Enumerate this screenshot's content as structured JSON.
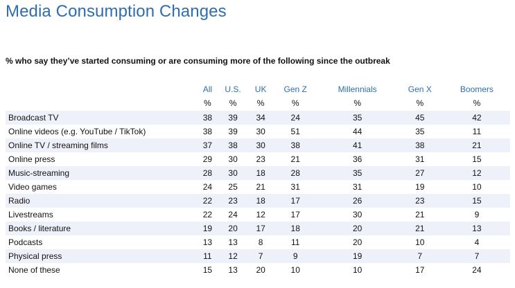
{
  "title": "Media Consumption Changes",
  "subtitle": "% who say they’ve started consuming or are consuming more of the following since the outbreak",
  "columns": [
    "All",
    "U.S.",
    "UK",
    "Gen Z",
    "Millennials",
    "Gen X",
    "Boomers"
  ],
  "unit": "%",
  "rows": [
    {
      "label": "Broadcast TV",
      "values": [
        "38",
        "39",
        "34",
        "24",
        "35",
        "45",
        "42"
      ]
    },
    {
      "label": "Online videos (e.g. YouTube / TikTok)",
      "values": [
        "38",
        "39",
        "30",
        "51",
        "44",
        "35",
        "11"
      ]
    },
    {
      "label": "Online TV / streaming films",
      "values": [
        "37",
        "38",
        "30",
        "38",
        "41",
        "38",
        "21"
      ]
    },
    {
      "label": "Online press",
      "values": [
        "29",
        "30",
        "23",
        "21",
        "36",
        "31",
        "15"
      ]
    },
    {
      "label": "Music-streaming",
      "values": [
        "28",
        "30",
        "18",
        "28",
        "35",
        "27",
        "12"
      ]
    },
    {
      "label": "Video games",
      "values": [
        "24",
        "25",
        "21",
        "31",
        "31",
        "19",
        "10"
      ]
    },
    {
      "label": "Radio",
      "values": [
        "22",
        "23",
        "18",
        "17",
        "26",
        "23",
        "15"
      ]
    },
    {
      "label": "Livestreams",
      "values": [
        "22",
        "24",
        "12",
        "17",
        "30",
        "21",
        "9"
      ]
    },
    {
      "label": "Books / literature",
      "values": [
        "19",
        "20",
        "17",
        "18",
        "20",
        "21",
        "13"
      ]
    },
    {
      "label": "Podcasts",
      "values": [
        "13",
        "13",
        "8",
        "11",
        "20",
        "10",
        "4"
      ]
    },
    {
      "label": "Physical press",
      "values": [
        "11",
        "12",
        "7",
        "9",
        "19",
        "7",
        "7"
      ]
    },
    {
      "label": "None of these",
      "values": [
        "15",
        "13",
        "20",
        "10",
        "10",
        "17",
        "24"
      ]
    }
  ],
  "colors": {
    "title": "#2d6db5",
    "header": "#2d6db5",
    "row_stripe": "#eef1f9"
  }
}
